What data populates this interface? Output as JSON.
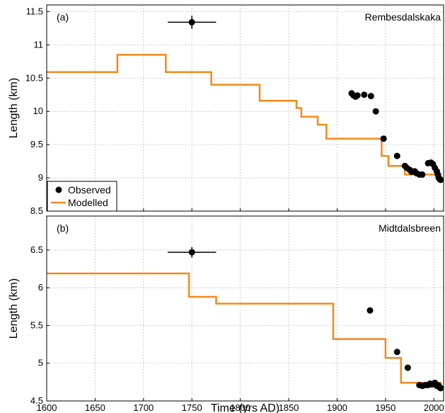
{
  "chart_data": [
    {
      "type": "line",
      "panel_label": "(a)",
      "title": "Rembesdalskaka",
      "xlabel": "",
      "ylabel": "Length (km)",
      "xlim": [
        1600,
        2010
      ],
      "ylim": [
        8.5,
        11.6
      ],
      "yticks": [
        "8.5",
        "9",
        "9.5",
        "10",
        "10.5",
        "11",
        "11.5"
      ],
      "grid": true,
      "legend_position": "bottom-left",
      "series": [
        {
          "name": "Observed",
          "kind": "scatter",
          "color": "#000000",
          "points": [
            [
              1750,
              11.34
            ],
            [
              1915,
              10.27
            ],
            [
              1917,
              10.24
            ],
            [
              1919,
              10.22
            ],
            [
              1921,
              10.24
            ],
            [
              1928,
              10.25
            ],
            [
              1935,
              10.23
            ],
            [
              1940,
              10.0
            ],
            [
              1948,
              9.59
            ],
            [
              1962,
              9.33
            ],
            [
              1970,
              9.18
            ],
            [
              1972,
              9.15
            ],
            [
              1975,
              9.12
            ],
            [
              1977,
              9.09
            ],
            [
              1980,
              9.1
            ],
            [
              1982,
              9.07
            ],
            [
              1985,
              9.05
            ],
            [
              1988,
              9.05
            ],
            [
              1994,
              9.22
            ],
            [
              1997,
              9.23
            ],
            [
              1999,
              9.21
            ],
            [
              2001,
              9.15
            ],
            [
              2003,
              9.1
            ],
            [
              2004,
              9.05
            ],
            [
              2005,
              9.0
            ],
            [
              2006,
              8.98
            ],
            [
              2007,
              8.97
            ]
          ],
          "error_bar": {
            "x": 1750,
            "y": 11.34,
            "xerr": 25,
            "yerr": 0.1
          }
        },
        {
          "name": "Modelled",
          "kind": "step",
          "color": "#f28a1b",
          "points": [
            [
              1600,
              10.59
            ],
            [
              1673,
              10.59
            ],
            [
              1673,
              10.85
            ],
            [
              1723,
              10.85
            ],
            [
              1723,
              10.59
            ],
            [
              1770,
              10.59
            ],
            [
              1770,
              10.4
            ],
            [
              1820,
              10.4
            ],
            [
              1820,
              10.16
            ],
            [
              1858,
              10.16
            ],
            [
              1858,
              10.05
            ],
            [
              1863,
              10.05
            ],
            [
              1863,
              9.92
            ],
            [
              1880,
              9.92
            ],
            [
              1880,
              9.8
            ],
            [
              1889,
              9.8
            ],
            [
              1889,
              9.59
            ],
            [
              1946,
              9.59
            ],
            [
              1946,
              9.33
            ],
            [
              1953,
              9.33
            ],
            [
              1953,
              9.18
            ],
            [
              1970,
              9.18
            ],
            [
              1970,
              9.05
            ],
            [
              2008,
              9.05
            ]
          ]
        }
      ]
    },
    {
      "type": "line",
      "panel_label": "(b)",
      "title": "Midtdalsbreen",
      "xlabel": "Time (yrs AD)",
      "ylabel": "Length (km)",
      "xlim": [
        1600,
        2010
      ],
      "ylim": [
        4.5,
        6.95
      ],
      "yticks": [
        "4.5",
        "5",
        "5.5",
        "6",
        "6.5"
      ],
      "xticks": [
        "1600",
        "1650",
        "1700",
        "1750",
        "1800",
        "1850",
        "1900",
        "1950",
        "2000"
      ],
      "grid": true,
      "series": [
        {
          "name": "Observed",
          "kind": "scatter",
          "color": "#000000",
          "points": [
            [
              1750,
              6.47
            ],
            [
              1934,
              5.7
            ],
            [
              1962,
              5.15
            ],
            [
              1973,
              4.94
            ],
            [
              1985,
              4.71
            ],
            [
              1988,
              4.7
            ],
            [
              1991,
              4.71
            ],
            [
              1994,
              4.71
            ],
            [
              1996,
              4.73
            ],
            [
              1998,
              4.72
            ],
            [
              2000,
              4.73
            ],
            [
              2001,
              4.74
            ],
            [
              2002,
              4.72
            ],
            [
              2003,
              4.7
            ],
            [
              2004,
              4.71
            ],
            [
              2005,
              4.7
            ],
            [
              2006,
              4.68
            ],
            [
              2007,
              4.67
            ]
          ],
          "error_bar": {
            "x": 1750,
            "y": 6.47,
            "xerr": 25,
            "yerr": 0.07
          }
        },
        {
          "name": "Modelled",
          "kind": "step",
          "color": "#f28a1b",
          "points": [
            [
              1600,
              6.19
            ],
            [
              1747,
              6.19
            ],
            [
              1747,
              5.88
            ],
            [
              1775,
              5.88
            ],
            [
              1775,
              5.79
            ],
            [
              1896,
              5.79
            ],
            [
              1896,
              5.32
            ],
            [
              1950,
              5.32
            ],
            [
              1950,
              5.07
            ],
            [
              1966,
              5.07
            ],
            [
              1966,
              4.74
            ],
            [
              2008,
              4.74
            ]
          ]
        }
      ]
    }
  ],
  "legend": {
    "observed_label": "Observed",
    "modelled_label": "Modelled"
  }
}
